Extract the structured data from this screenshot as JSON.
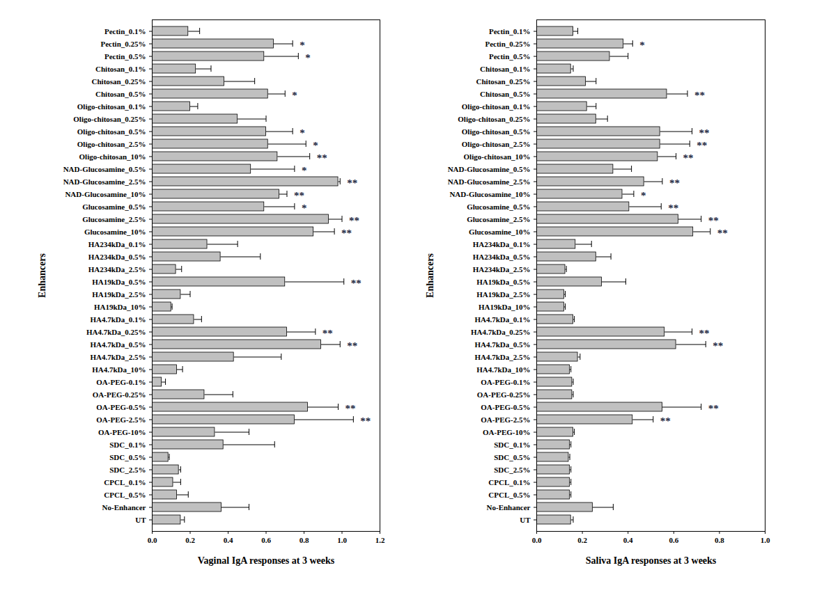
{
  "chart_data": [
    {
      "type": "bar",
      "orientation": "horizontal",
      "xlabel": "Vaginal IgA responses at 3 weeks",
      "ylabel": "Enhancers",
      "categories": [
        "Pectin_0.1%",
        "Pectin_0.25%",
        "Pectin_0.5%",
        "Chitosan_0.1%",
        "Chitosan_0.25%",
        "Chitosan_0.5%",
        "Oligo-chitosan_0.1%",
        "Oligo-chitosan_0.25%",
        "Oligo-chitosan_0.5%",
        "Oligo-chitosan_2.5%",
        "Oligo-chitosan_10%",
        "NAD-Glucosamine_0.5%",
        "NAD-Glucosamine_2.5%",
        "NAD-Glucosamine_10%",
        "Glucosamine_0.5%",
        "Glucosamine_2.5%",
        "Glucosamine_10%",
        "HA234kDa_0.1%",
        "HA234kDa_0.5%",
        "HA234kDa_2.5%",
        "HA19kDa_0.5%",
        "HA19kDa_2.5%",
        "HA19kDa_10%",
        "HA4.7kDa_0.1%",
        "HA4.7kDa_0.25%",
        "HA4.7kDa_0.5%",
        "HA4.7kDa_2.5%",
        "HA4.7kDa_10%",
        "OA-PEG-0.1%",
        "OA-PEG-0.25%",
        "OA-PEG-0.5%",
        "OA-PEG-2.5%",
        "OA-PEG-10%",
        "SDC_0.1%",
        "SDC_0.5%",
        "SDC_2.5%",
        "CPCL_0.1%",
        "CPCL_0.5%",
        "No-Enhancer",
        "UT"
      ],
      "values": [
        0.19,
        0.64,
        0.59,
        0.23,
        0.38,
        0.61,
        0.2,
        0.45,
        0.6,
        0.61,
        0.66,
        0.52,
        0.98,
        0.67,
        0.59,
        0.93,
        0.85,
        0.29,
        0.36,
        0.125,
        0.7,
        0.15,
        0.1,
        0.22,
        0.71,
        0.89,
        0.43,
        0.13,
        0.05,
        0.275,
        0.82,
        0.75,
        0.33,
        0.375,
        0.085,
        0.14,
        0.11,
        0.13,
        0.365,
        0.15
      ],
      "errors": [
        0.06,
        0.1,
        0.18,
        0.08,
        0.16,
        0.09,
        0.04,
        0.15,
        0.14,
        0.2,
        0.17,
        0.23,
        0.01,
        0.04,
        0.16,
        0.07,
        0.11,
        0.16,
        0.21,
        0.03,
        0.31,
        0.05,
        0.005,
        0.04,
        0.15,
        0.1,
        0.25,
        0.03,
        0.02,
        0.15,
        0.16,
        0.31,
        0.18,
        0.27,
        0.005,
        0.01,
        0.04,
        0.06,
        0.145,
        0.02
      ],
      "significance": [
        null,
        "*",
        "*",
        null,
        null,
        "*",
        null,
        null,
        "*",
        "*",
        "**",
        "*",
        "**",
        "**",
        "*",
        "**",
        "**",
        null,
        null,
        null,
        "**",
        null,
        null,
        null,
        "**",
        "**",
        null,
        null,
        null,
        null,
        "**",
        "**",
        null,
        null,
        null,
        null,
        null,
        null,
        null,
        null
      ],
      "color": "#c0c0c0",
      "xlim": [
        0,
        1.2
      ],
      "xticks": [
        {
          "value": 0,
          "label": "0.0"
        },
        0.2,
        0.4,
        0.6,
        0.8,
        {
          "value": 1,
          "label": "1.0"
        },
        1.2
      ]
    },
    {
      "type": "bar",
      "orientation": "horizontal",
      "xlabel": "Saliva IgA responses at 3 weeks",
      "ylabel": "Enhancers",
      "categories": [
        "Pectin_0.1%",
        "Pectin_0.25%",
        "Pectin_0.5%",
        "Chitosan_0.1%",
        "Chitosan_0.25%",
        "Chitosan_0.5%",
        "Oligo-chitosan_0.1%",
        "Oligo-chitosan_0.25%",
        "Oligo-chitosan_0.5%",
        "Oligo-chitosan_2.5%",
        "Oligo-chitosan_10%",
        "NAD-Glucosamine_0.5%",
        "NAD-Glucosamine_2.5%",
        "NAD-Glucosamine_10%",
        "Glucosamine_0.5%",
        "Glucosamine_2.5%",
        "Glucosamine_10%",
        "HA234kDa_0.1%",
        "HA234kDa_0.5%",
        "HA234kDa_2.5%",
        "HA19kDa_0.5%",
        "HA19kDa_2.5%",
        "HA19kDa_10%",
        "HA4.7kDa_0.1%",
        "HA4.7kDa_0.25%",
        "HA4.7kDa_0.5%",
        "HA4.7kDa_2.5%",
        "HA4.7kDa_10%",
        "OA-PEG-0.1%",
        "OA-PEG-0.25%",
        "OA-PEG-0.5%",
        "OA-PEG-2.5%",
        "OA-PEG-10%",
        "SDC_0.1%",
        "SDC_0.5%",
        "SDC_2.5%",
        "CPCL_0.1%",
        "CPCL_0.5%",
        "No-Enhancer",
        "UT"
      ],
      "values": [
        0.16,
        0.38,
        0.32,
        0.15,
        0.215,
        0.57,
        0.22,
        0.26,
        0.54,
        0.54,
        0.53,
        0.335,
        0.47,
        0.375,
        0.405,
        0.62,
        0.685,
        0.17,
        0.26,
        0.125,
        0.285,
        0.12,
        0.12,
        0.16,
        0.56,
        0.61,
        0.18,
        0.145,
        0.155,
        0.155,
        0.55,
        0.42,
        0.16,
        0.145,
        0.14,
        0.145,
        0.145,
        0.145,
        0.245,
        0.15
      ],
      "errors": [
        0.02,
        0.04,
        0.08,
        0.01,
        0.045,
        0.09,
        0.04,
        0.05,
        0.14,
        0.13,
        0.08,
        0.08,
        0.08,
        0.05,
        0.14,
        0.1,
        0.075,
        0.07,
        0.065,
        0.005,
        0.105,
        0.005,
        0.005,
        0.005,
        0.12,
        0.13,
        0.01,
        0.005,
        0.005,
        0.005,
        0.17,
        0.09,
        0.005,
        0.005,
        0.005,
        0.005,
        0.005,
        0.005,
        0.09,
        0.01
      ],
      "significance": [
        null,
        "*",
        null,
        null,
        null,
        "**",
        null,
        null,
        "**",
        "**",
        "**",
        null,
        "**",
        "*",
        "**",
        "**",
        "**",
        null,
        null,
        null,
        null,
        null,
        null,
        null,
        "**",
        "**",
        null,
        null,
        null,
        null,
        "**",
        "**",
        null,
        null,
        null,
        null,
        null,
        null,
        null,
        null
      ],
      "color": "#c0c0c0",
      "xlim": [
        0,
        1
      ],
      "xticks": [
        {
          "value": 0,
          "label": "0.0"
        },
        0.2,
        0.4,
        0.6,
        0.8,
        {
          "value": 1,
          "label": "1.0"
        }
      ]
    }
  ]
}
